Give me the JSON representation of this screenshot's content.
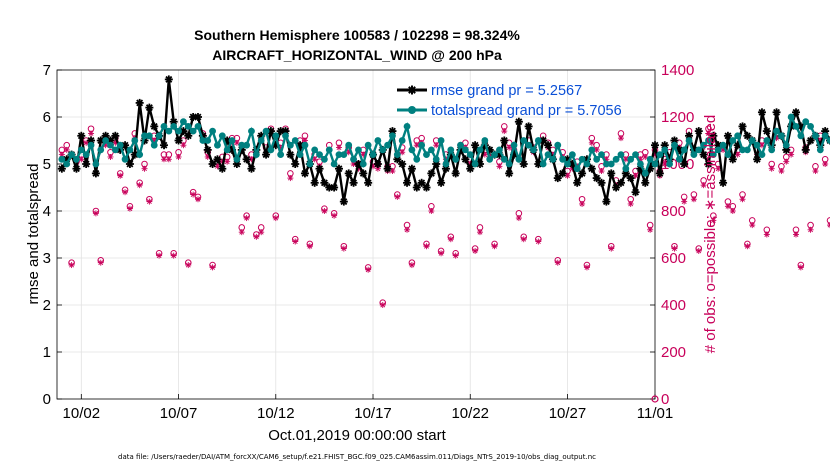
{
  "chart_data": {
    "type": "line",
    "title_line1": "Southern Hemisphere 100583 / 102298 = 98.324%",
    "title_line2": "AIRCRAFT_HORIZONTAL_WIND @ 200 hPa",
    "xlabel": "Oct.01,2019 00:00:00 start",
    "ylabel": "rmse and totalspread",
    "ylabel_right": "# of obs: o=possible; ∗=assimilated",
    "footnote": "data file: /Users/raeder/DAI/ATM_forcXX/CAM6_setup/f.e21.FHIST_BGC.f09_025.CAM6assim.011/Diags_NTrS_2019-10/obs_diag_output.nc",
    "xlim": [
      0.75,
      31.5
    ],
    "ylim": [
      0,
      7
    ],
    "ylim_right": [
      0,
      1400
    ],
    "x_ticks": [
      2,
      7,
      12,
      17,
      22,
      27,
      32
    ],
    "x_tick_labels": [
      "10/02",
      "10/07",
      "10/12",
      "10/17",
      "10/22",
      "10/27",
      "11/01"
    ],
    "y_ticks": [
      0,
      1,
      2,
      3,
      4,
      5,
      6,
      7
    ],
    "y_right_ticks": [
      0,
      200,
      400,
      600,
      800,
      1000,
      1200,
      1400
    ],
    "colors": {
      "rmse": "#000000",
      "spread": "#008080",
      "obs": "#c8005a",
      "legend_text": "#0a4fd6"
    },
    "legend": {
      "placement": "top-right",
      "entries": [
        "rmse grand pr = 5.2567",
        "totalspread grand pr = 5.7056"
      ]
    },
    "series": [
      {
        "name": "rmse",
        "x_start": 1.0,
        "x_step": 0.25,
        "values": [
          4.9,
          5.1,
          5.2,
          4.9,
          5.6,
          5.0,
          5.5,
          4.8,
          5.5,
          5.6,
          5.5,
          5.6,
          5.3,
          5.4,
          5.0,
          5.2,
          6.3,
          5.5,
          6.2,
          5.8,
          5.6,
          5.4,
          6.8,
          5.9,
          5.5,
          5.7,
          5.6,
          6.0,
          6.0,
          5.6,
          5.3,
          5.0,
          5.1,
          4.9,
          5.5,
          5.3,
          5.0,
          5.3,
          5.1,
          4.9,
          5.3,
          5.6,
          5.2,
          5.7,
          5.4,
          5.7,
          5.7,
          5.2,
          5.0,
          5.4,
          4.8,
          5.0,
          4.6,
          4.9,
          4.6,
          4.5,
          4.5,
          4.9,
          4.2,
          4.8,
          4.6,
          5.0,
          4.8,
          4.6,
          5.2,
          5.0,
          5.3,
          4.9,
          5.7,
          5.1,
          5.0,
          4.6,
          4.9,
          4.5,
          4.6,
          4.5,
          4.8,
          5.0,
          4.6,
          4.9,
          5.2,
          4.8,
          5.3,
          5.1,
          4.9,
          5.4,
          5.0,
          5.4,
          5.3,
          5.2,
          5.2,
          5.5,
          4.8,
          5.2,
          5.9,
          5.0,
          5.8,
          5.3,
          5.0,
          5.5,
          5.4,
          5.1,
          4.7,
          4.8,
          5.1,
          5.0,
          4.6,
          4.8,
          5.1,
          4.9,
          4.7,
          4.6,
          4.2,
          4.8,
          4.5,
          4.6,
          4.8,
          4.7,
          4.4,
          4.9,
          4.6,
          4.9,
          5.4,
          4.8,
          5.4,
          5.1,
          5.5,
          5.3,
          5.0,
          5.6,
          5.3,
          5.7,
          5.2,
          5.0,
          5.6,
          5.4,
          4.6,
          5.6,
          5.1,
          5.4,
          5.8,
          5.6,
          5.5,
          5.1,
          6.1,
          5.7,
          5.4,
          6.1,
          5.6,
          5.3,
          5.8,
          6.1,
          5.8,
          5.3,
          5.5,
          5.6,
          5.4,
          5.7,
          5.5,
          5.5,
          5.8
        ],
        "marker": "asterisk"
      },
      {
        "name": "totalspread",
        "x_start": 1.0,
        "x_step": 0.25,
        "values": [
          5.1,
          5.0,
          5.2,
          5.1,
          5.3,
          5.2,
          5.4,
          5.0,
          5.3,
          5.5,
          5.4,
          5.3,
          5.4,
          5.1,
          5.3,
          5.5,
          5.2,
          5.6,
          5.6,
          5.4,
          5.6,
          5.8,
          5.7,
          5.8,
          5.7,
          5.9,
          5.8,
          5.7,
          5.8,
          5.5,
          5.5,
          5.7,
          5.4,
          5.6,
          5.3,
          5.5,
          5.1,
          5.4,
          5.4,
          5.7,
          5.2,
          5.5,
          5.7,
          5.3,
          5.6,
          5.2,
          5.6,
          5.4,
          5.5,
          5.2,
          5.4,
          5.0,
          5.3,
          5.2,
          5.1,
          5.3,
          5.0,
          5.2,
          5.2,
          5.4,
          5.1,
          5.3,
          5.0,
          5.4,
          5.2,
          5.5,
          5.3,
          5.4,
          5.6,
          5.2,
          5.5,
          5.8,
          5.3,
          5.1,
          5.4,
          5.2,
          5.3,
          5.1,
          5.5,
          5.0,
          5.3,
          5.1,
          5.4,
          5.3,
          5.2,
          5.0,
          5.3,
          5.5,
          5.1,
          5.2,
          5.3,
          5.1,
          5.0,
          5.4,
          5.1,
          5.5,
          5.4,
          5.3,
          5.5,
          5.0,
          5.2,
          5.1,
          5.4,
          5.1,
          5.0,
          5.2,
          4.9,
          5.1,
          5.0,
          5.3,
          5.1,
          5.2,
          5.0,
          5.0,
          5.1,
          5.2,
          4.9,
          5.1,
          5.2,
          5.0,
          4.8,
          5.1,
          5.0,
          5.2,
          5.3,
          5.0,
          5.4,
          5.1,
          5.3,
          5.5,
          5.2,
          5.3,
          5.4,
          5.5,
          5.2,
          5.3,
          5.4,
          5.2,
          5.5,
          5.6,
          5.3,
          5.3,
          5.5,
          5.4,
          5.2,
          5.5,
          5.3,
          5.7,
          5.6,
          5.4,
          6.0,
          5.8,
          5.6,
          5.9,
          5.8,
          5.6,
          5.3,
          5.6,
          5.5,
          5.5,
          5.2,
          5.5,
          5.5
        ],
        "marker": "circle"
      },
      {
        "name": "obs possible",
        "axis": "right",
        "x_start": 1.0,
        "x_step": 0.25,
        "values": [
          1060,
          1080,
          580,
          1010,
          1040,
          1100,
          1150,
          800,
          590,
          1100,
          1050,
          1110,
          960,
          890,
          820,
          1130,
          920,
          1000,
          850,
          1120,
          620,
          1040,
          1040,
          620,
          1050,
          1100,
          580,
          880,
          860,
          1130,
          1050,
          570,
          1010,
          1030,
          1030,
          1110,
          1110,
          730,
          780,
          1040,
          700,
          730,
          1070,
          1150,
          780,
          1090,
          1150,
          960,
          680,
          1100,
          1120,
          660,
          1040,
          1010,
          810,
          1080,
          790,
          1090,
          650,
          1070,
          1020,
          1000,
          1060,
          560,
          1010,
          1000,
          410,
          990,
          990,
          870,
          1070,
          740,
          580,
          1100,
          1110,
          660,
          820,
          1100,
          630,
          1040,
          690,
          620,
          1080,
          1090,
          1020,
          640,
          730,
          1060,
          1050,
          660,
          1010,
          1160,
          1090,
          1060,
          790,
          690,
          1100,
          1070,
          680,
          1120,
          1090,
          1060,
          590,
          1050,
          970,
          1000,
          1010,
          850,
          570,
          1110,
          1080,
          990,
          1040,
          650,
          930,
          1130,
          1040,
          850,
          970,
          1040,
          1050,
          740,
          1060,
          970,
          1020,
          1050,
          650,
          1090,
          860,
          1140,
          870,
          640,
          930,
          1150,
          780,
          1000,
          1080,
          840,
          820,
          1060,
          870,
          660,
          760,
          1060,
          1100,
          720,
          1000,
          1130,
          990,
          1030,
          1060,
          720,
          570,
          1070,
          740,
          990,
          1120,
          1020,
          760,
          710,
          1010
        ],
        "marker": "o"
      },
      {
        "name": "obs assimilated",
        "axis": "right",
        "x_start": 1.0,
        "x_step": 0.25,
        "values": [
          1040,
          1060,
          570,
          990,
          1020,
          1090,
          1130,
          790,
          580,
          1080,
          1030,
          1090,
          950,
          880,
          810,
          1110,
          910,
          980,
          840,
          1100,
          610,
          1020,
          1020,
          610,
          1030,
          1080,
          570,
          870,
          850,
          1110,
          1030,
          560,
          990,
          1010,
          1010,
          1090,
          1090,
          710,
          770,
          1020,
          690,
          710,
          1050,
          1130,
          770,
          1070,
          1130,
          940,
          670,
          1080,
          1100,
          650,
          1020,
          990,
          800,
          1060,
          780,
          1070,
          640,
          1050,
          1000,
          980,
          1040,
          550,
          990,
          980,
          400,
          970,
          970,
          860,
          1050,
          720,
          570,
          1080,
          1090,
          650,
          800,
          1080,
          620,
          1020,
          680,
          610,
          1060,
          1070,
          1000,
          630,
          710,
          1040,
          1030,
          650,
          990,
          1140,
          1070,
          1040,
          770,
          680,
          1080,
          1050,
          670,
          1100,
          1070,
          1040,
          580,
          1030,
          950,
          980,
          990,
          830,
          560,
          1090,
          1060,
          970,
          1020,
          640,
          910,
          1110,
          1020,
          830,
          950,
          1020,
          1030,
          720,
          1040,
          950,
          1000,
          1030,
          640,
          1070,
          840,
          1120,
          850,
          630,
          910,
          1130,
          760,
          980,
          1060,
          820,
          800,
          1040,
          850,
          650,
          740,
          1040,
          1080,
          700,
          980,
          1110,
          970,
          1010,
          1040,
          700,
          560,
          1050,
          720,
          970,
          1100,
          1000,
          740,
          690,
          990
        ],
        "marker": "asterisk"
      }
    ],
    "final_point": {
      "x": 31.5,
      "obs_possible": 0
    }
  }
}
